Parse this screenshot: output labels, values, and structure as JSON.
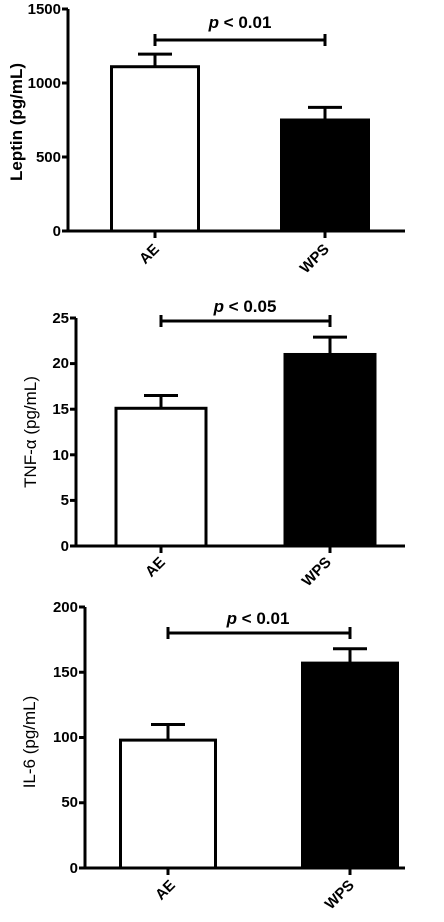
{
  "chart_data": [
    {
      "type": "bar",
      "categories": [
        "AE",
        "WPS"
      ],
      "values": [
        1110,
        750
      ],
      "errors": [
        85,
        85
      ],
      "ylabel": "Leptin (pg/mL)",
      "ylim": [
        0,
        1500
      ],
      "yticks": [
        "0",
        "500",
        "1000",
        "1500"
      ],
      "annotation": {
        "p": "p",
        "text": " < 0.01"
      },
      "colors": [
        "#ffffff",
        "#000000"
      ]
    },
    {
      "type": "bar",
      "categories": [
        "AE",
        "WPS"
      ],
      "values": [
        15.1,
        21
      ],
      "errors": [
        1.4,
        1.9
      ],
      "ylabel": "TNF-α (pg/mL)",
      "ylim": [
        0,
        25
      ],
      "yticks": [
        "0",
        "5",
        "10",
        "15",
        "20",
        "25"
      ],
      "annotation": {
        "p": "p",
        "text": " < 0.05"
      },
      "colors": [
        "#ffffff",
        "#000000"
      ]
    },
    {
      "type": "bar",
      "categories": [
        "AE",
        "WPS"
      ],
      "values": [
        98,
        157
      ],
      "errors": [
        12,
        11
      ],
      "ylabel": "IL-6 (pg/mL)",
      "ylim": [
        0,
        200
      ],
      "yticks": [
        "0",
        "50",
        "100",
        "150",
        "200"
      ],
      "annotation": {
        "p": "p",
        "text": " < 0.01"
      },
      "colors": [
        "#ffffff",
        "#000000"
      ]
    }
  ]
}
